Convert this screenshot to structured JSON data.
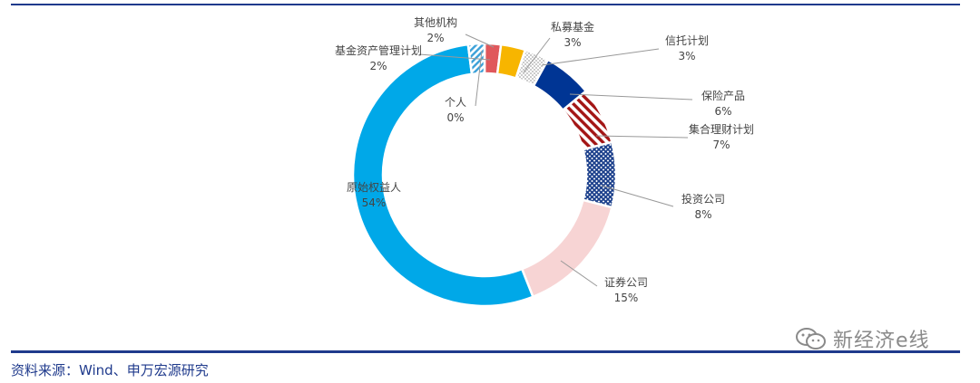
{
  "chart_data": {
    "type": "pie",
    "style": "donut",
    "legend": "none",
    "slices": [
      {
        "label": "原始权益人",
        "value": 54,
        "value_text": "54%",
        "color": "#00a8e8",
        "pattern": "solid"
      },
      {
        "label": "基金资产管理计划",
        "value": 2,
        "value_text": "2%",
        "color": "#3aa0d8",
        "pattern": "hatch-light"
      },
      {
        "label": "其他机构",
        "value": 2,
        "value_text": "2%",
        "color": "#e0585c",
        "pattern": "solid"
      },
      {
        "label": "私募基金",
        "value": 3,
        "value_text": "3%",
        "color": "#f7b500",
        "pattern": "solid"
      },
      {
        "label": "信托计划",
        "value": 3,
        "value_text": "3%",
        "color": "#bfbfbf",
        "pattern": "dots"
      },
      {
        "label": "保险产品",
        "value": 6,
        "value_text": "6%",
        "color": "#003594",
        "pattern": "solid"
      },
      {
        "label": "集合理财计划",
        "value": 7,
        "value_text": "7%",
        "color": "#a31515",
        "pattern": "hatch"
      },
      {
        "label": "投资公司",
        "value": 8,
        "value_text": "8%",
        "color": "#1b3f8b",
        "pattern": "crosshatch"
      },
      {
        "label": "证券公司",
        "value": 15,
        "value_text": "15%",
        "color": "#f7d4d4",
        "pattern": "solid"
      },
      {
        "label": "个人",
        "value": 0,
        "value_text": "0%",
        "color": "#888888",
        "pattern": "solid"
      }
    ]
  },
  "footer": {
    "source": "资料来源：Wind、申万宏源研究",
    "watermark": "新经济e线"
  }
}
